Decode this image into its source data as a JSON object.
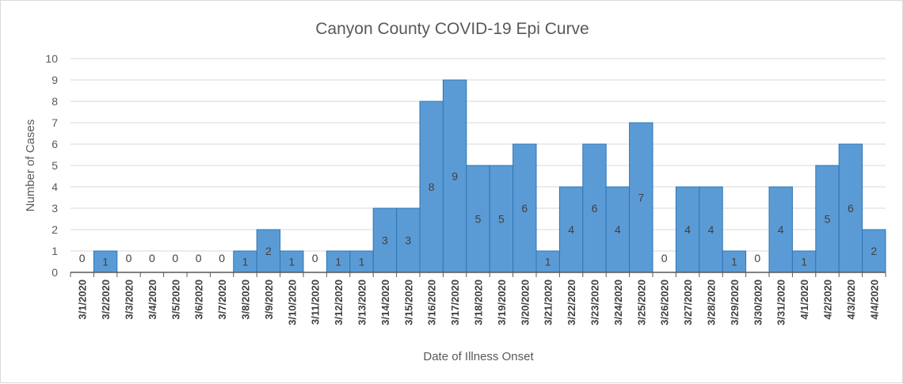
{
  "chart_data": {
    "type": "bar",
    "title": "Canyon County COVID-19 Epi Curve",
    "xlabel": "Date of Illness Onset",
    "ylabel": "Number of Cases",
    "ylim": [
      0,
      10
    ],
    "yticks": [
      0,
      1,
      2,
      3,
      4,
      5,
      6,
      7,
      8,
      9,
      10
    ],
    "grid": true,
    "legend": "none",
    "bar_color": "#5b9bd5",
    "bar_edge_color": "#2e75b6",
    "categories": [
      "3/1/2020",
      "3/2/2020",
      "3/3/2020",
      "3/4/2020",
      "3/5/2020",
      "3/6/2020",
      "3/7/2020",
      "3/8/2020",
      "3/9/2020",
      "3/10/2020",
      "3/11/2020",
      "3/12/2020",
      "3/13/2020",
      "3/14/2020",
      "3/15/2020",
      "3/16/2020",
      "3/17/2020",
      "3/18/2020",
      "3/19/2020",
      "3/20/2020",
      "3/21/2020",
      "3/22/2020",
      "3/23/2020",
      "3/24/2020",
      "3/25/2020",
      "3/26/2020",
      "3/27/2020",
      "3/28/2020",
      "3/29/2020",
      "3/30/2020",
      "3/31/2020",
      "4/1/2020",
      "4/2/2020",
      "4/3/2020",
      "4/4/2020"
    ],
    "values": [
      0,
      1,
      0,
      0,
      0,
      0,
      0,
      1,
      2,
      1,
      0,
      1,
      1,
      3,
      3,
      8,
      9,
      5,
      5,
      6,
      1,
      4,
      6,
      4,
      7,
      0,
      4,
      4,
      1,
      0,
      4,
      1,
      5,
      6,
      2
    ]
  }
}
